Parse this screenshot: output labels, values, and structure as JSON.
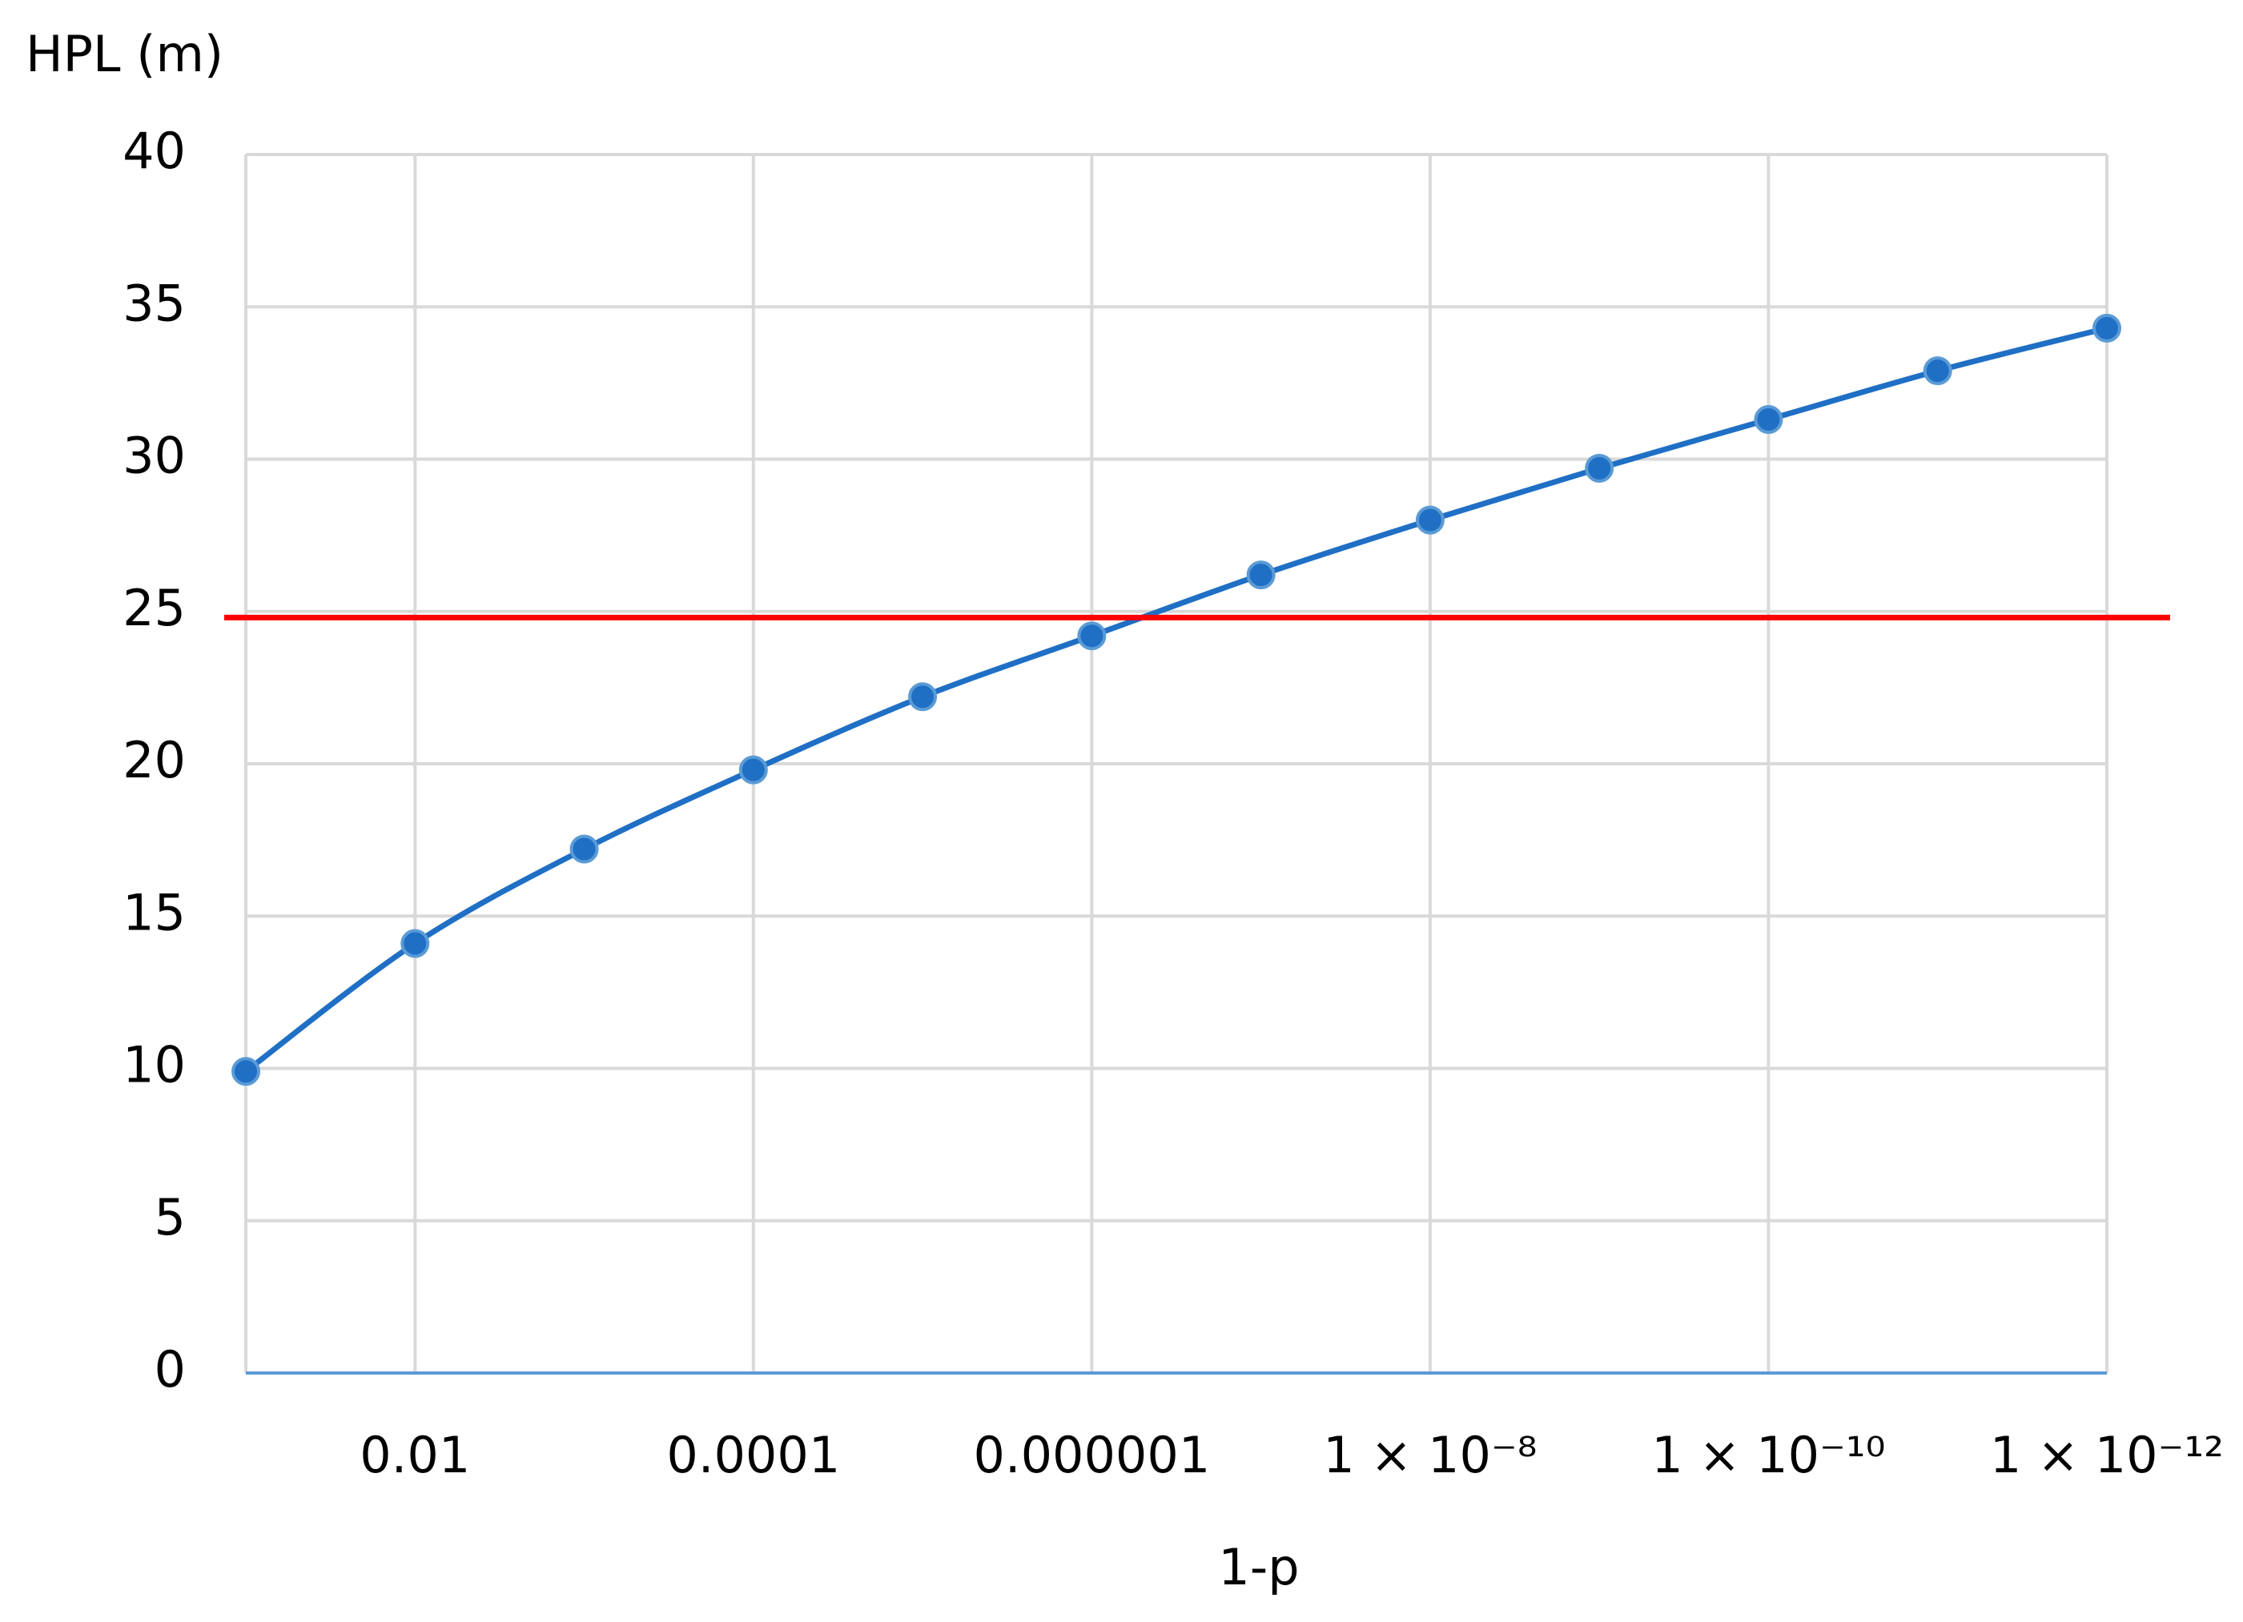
{
  "chart_data": {
    "type": "line",
    "ylabel": "HPL (m)",
    "xlabel": "1-p",
    "x": [
      0.1,
      0.01,
      0.001,
      0.0001,
      1e-05,
      1e-06,
      1e-07,
      1e-08,
      1e-09,
      1e-10,
      1e-11,
      1e-12
    ],
    "series": [
      {
        "name": "HPL",
        "color": "#1f6fc5",
        "values": [
          9.9,
          14.1,
          17.2,
          19.8,
          22.2,
          24.2,
          26.2,
          28.0,
          29.7,
          31.3,
          32.9,
          34.3
        ]
      }
    ],
    "reference_line": {
      "value": 24.8,
      "color": "#ff0000"
    },
    "xscale": "log",
    "xlim": [
      0.1,
      1e-12
    ],
    "xticks": [
      0.01,
      {
        "value": 0.0001,
        "label": "0.0001"
      },
      {
        "value": 1e-06,
        "label": "0.000001"
      },
      {
        "value": 1e-08,
        "label": "1 × 10⁻⁸"
      },
      {
        "value": 1e-10,
        "label": "1 × 10⁻¹⁰"
      },
      {
        "value": 1e-12,
        "label": "1 × 10⁻¹²"
      }
    ],
    "ylim": [
      0,
      40
    ],
    "yticks": [
      0,
      5,
      10,
      15,
      20,
      25,
      30,
      35,
      40
    ],
    "grid": true
  }
}
